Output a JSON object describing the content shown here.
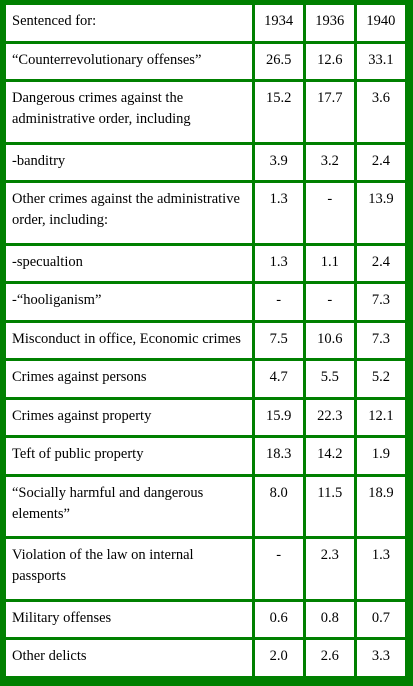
{
  "table": {
    "header": [
      "Sentenced for:",
      "1934",
      "1936",
      "1940"
    ],
    "rows": [
      {
        "label": "“Counterrevolutionary offenses”",
        "values": [
          "26.5",
          "12.6",
          "33.1"
        ]
      },
      {
        "label": "Dangerous crimes against the administrative order, including",
        "values": [
          "15.2",
          "17.7",
          "3.6"
        ]
      },
      {
        "label": "-banditry",
        "values": [
          "3.9",
          "3.2",
          "2.4"
        ]
      },
      {
        "label": "Other crimes against the administrative order, including:",
        "values": [
          "1.3",
          "-",
          "13.9"
        ]
      },
      {
        "label": "-specualtion",
        "values": [
          "1.3",
          "1.1",
          "2.4"
        ]
      },
      {
        "label": "-“hooliganism”",
        "values": [
          "-",
          "-",
          "7.3"
        ]
      },
      {
        "label": "Misconduct in office, Economic crimes",
        "values": [
          "7.5",
          "10.6",
          "7.3"
        ]
      },
      {
        "label": "Crimes against persons",
        "values": [
          "4.7",
          "5.5",
          "5.2"
        ]
      },
      {
        "label": "Crimes against property",
        "values": [
          "15.9",
          "22.3",
          "12.1"
        ]
      },
      {
        "label": "Teft of public property",
        "values": [
          "18.3",
          "14.2",
          "1.9"
        ]
      },
      {
        "label": "“Socially harmful and dangerous elements”",
        "values": [
          "8.0",
          "11.5",
          "18.9"
        ]
      },
      {
        "label": "Violation of the law on internal passports",
        "values": [
          "-",
          "2.3",
          "1.3"
        ]
      },
      {
        "label": "Military offenses",
        "values": [
          "0.6",
          "0.8",
          "0.7"
        ]
      },
      {
        "label": "Other delicts",
        "values": [
          "2.0",
          "2.6",
          "3.3"
        ]
      }
    ]
  }
}
